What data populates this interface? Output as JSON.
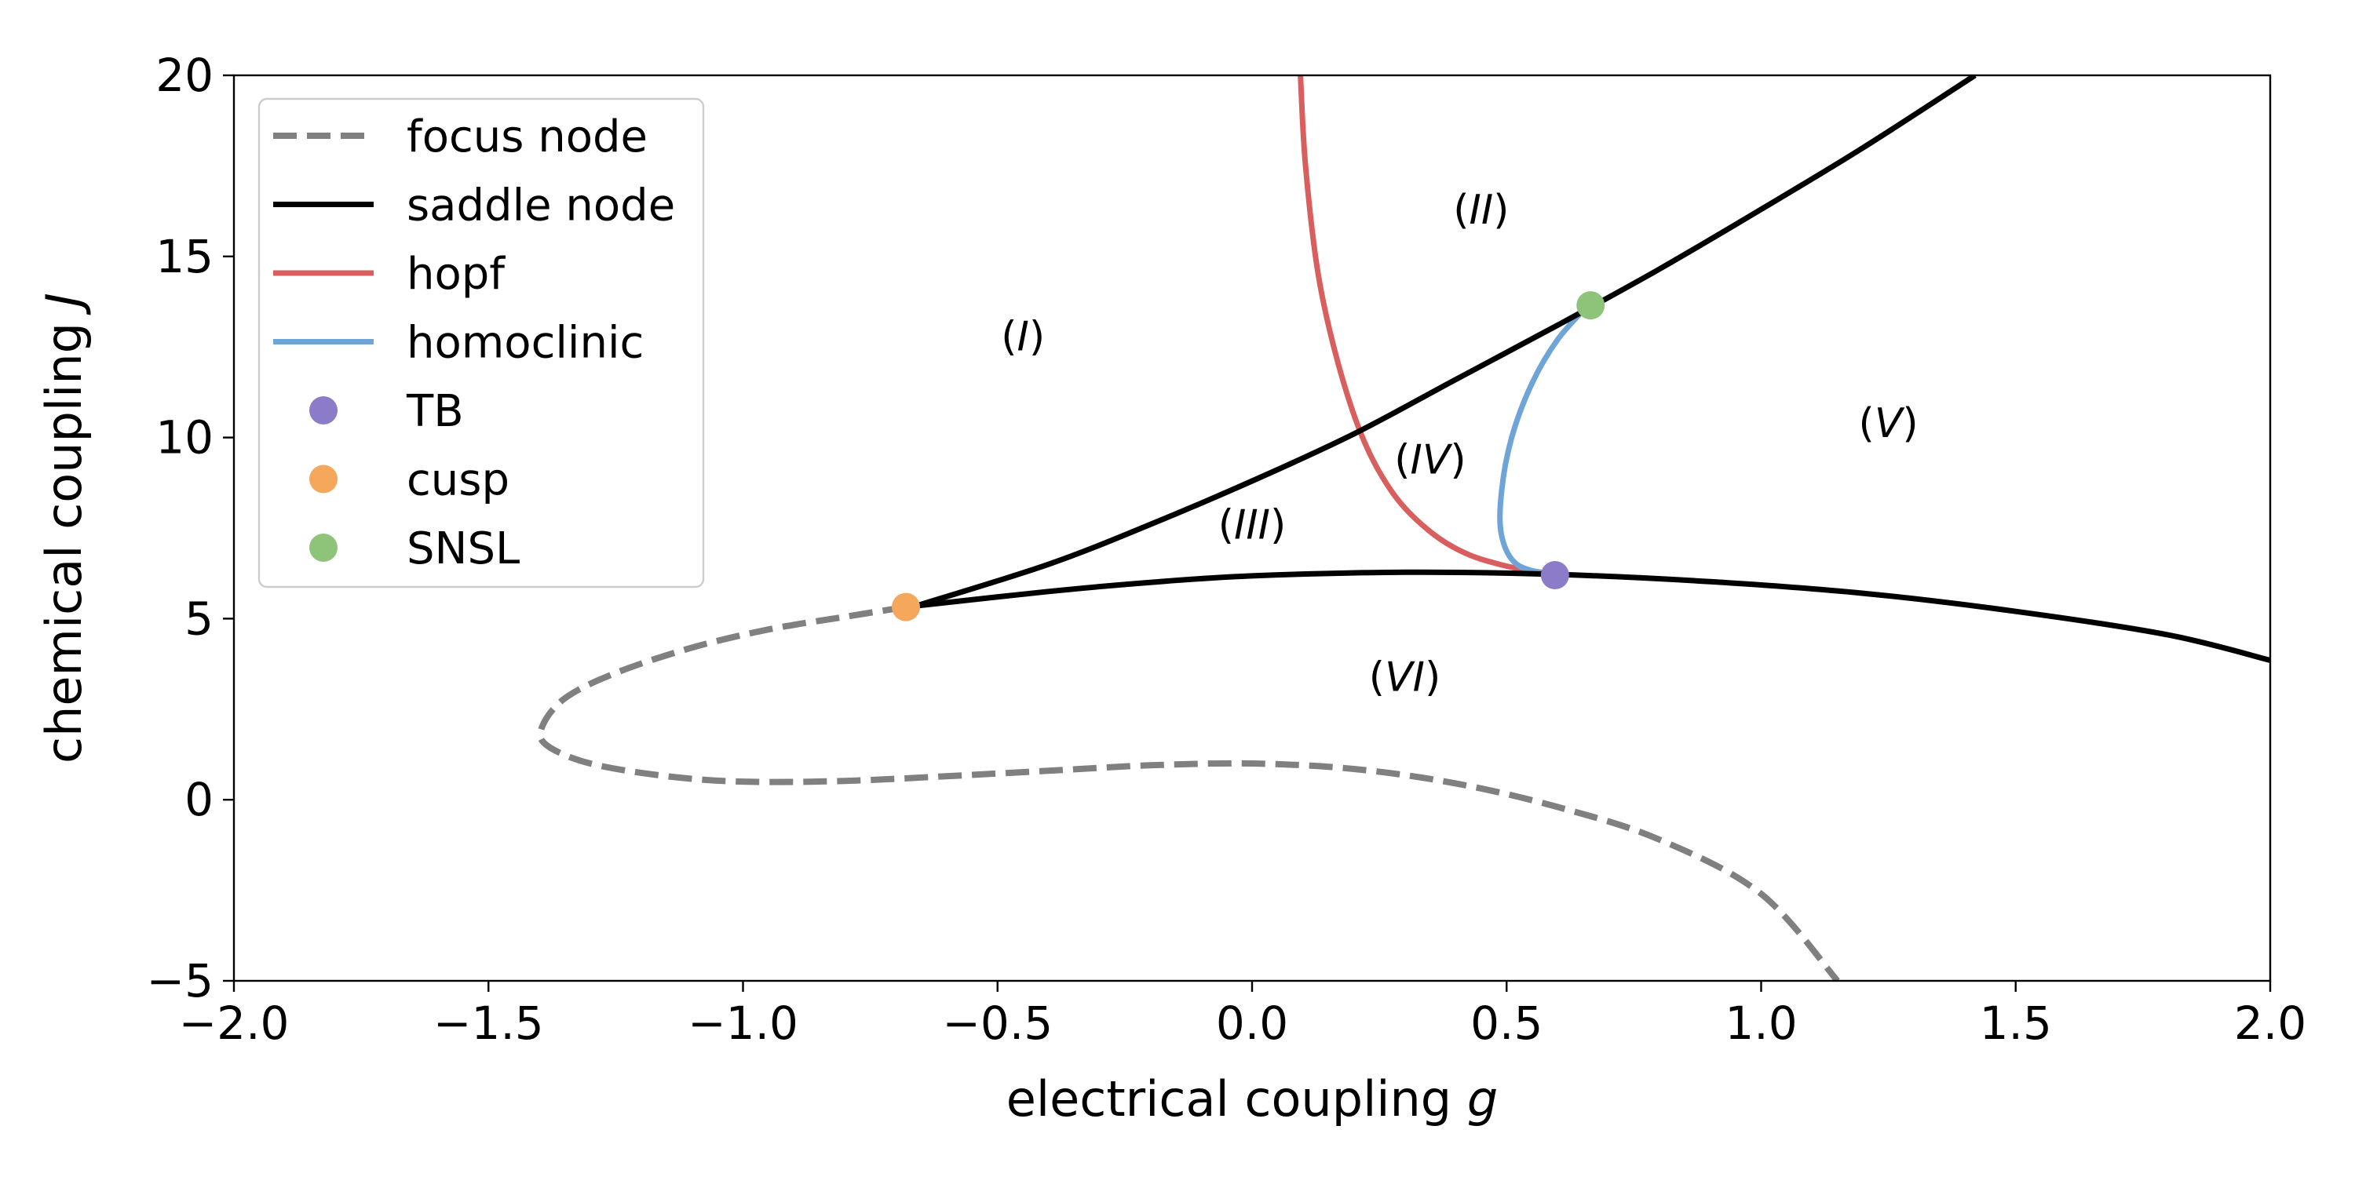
{
  "chart_data": {
    "type": "line",
    "xlabel_text": "electrical coupling ",
    "xlabel_var": "g",
    "ylabel_text": "chemical coupling ",
    "ylabel_var": "J",
    "xlim": [
      -2.0,
      2.0
    ],
    "ylim": [
      -5,
      20
    ],
    "x_ticks": [
      -2.0,
      -1.5,
      -1.0,
      -0.5,
      0.0,
      0.5,
      1.0,
      1.5,
      2.0
    ],
    "x_tick_labels": [
      "−2.0",
      "−1.5",
      "−1.0",
      "−0.5",
      "0.0",
      "0.5",
      "1.0",
      "1.5",
      "2.0"
    ],
    "y_ticks": [
      -5,
      0,
      5,
      10,
      15,
      20
    ],
    "y_tick_labels": [
      "−5",
      "0",
      "5",
      "10",
      "15",
      "20"
    ],
    "grid": false,
    "legend_position": "top-left",
    "series": [
      {
        "name": "focus node",
        "kind": "line",
        "style": "dashed",
        "color": "#808080",
        "points": [
          [
            -0.68,
            5.32
          ],
          [
            -0.8,
            5.05
          ],
          [
            -0.95,
            4.7
          ],
          [
            -1.1,
            4.2
          ],
          [
            -1.25,
            3.5
          ],
          [
            -1.35,
            2.8
          ],
          [
            -1.395,
            2.0
          ],
          [
            -1.385,
            1.5
          ],
          [
            -1.3,
            1.0
          ],
          [
            -1.15,
            0.65
          ],
          [
            -1.0,
            0.5
          ],
          [
            -0.8,
            0.52
          ],
          [
            -0.6,
            0.65
          ],
          [
            -0.4,
            0.8
          ],
          [
            -0.2,
            0.95
          ],
          [
            0.0,
            1.0
          ],
          [
            0.2,
            0.85
          ],
          [
            0.4,
            0.45
          ],
          [
            0.6,
            -0.2
          ],
          [
            0.8,
            -1.1
          ],
          [
            1.0,
            -2.6
          ],
          [
            1.15,
            -5.0
          ]
        ]
      },
      {
        "name": "saddle node",
        "kind": "line",
        "style": "solid",
        "color": "#000000",
        "segments": [
          [
            [
              -0.66,
              5.35
            ],
            [
              -0.4,
              6.5
            ],
            [
              -0.2,
              7.6
            ],
            [
              0.0,
              8.8
            ],
            [
              0.2,
              10.1
            ],
            [
              0.4,
              11.6
            ],
            [
              0.6,
              13.1
            ],
            [
              0.8,
              14.65
            ],
            [
              1.0,
              16.3
            ],
            [
              1.2,
              18.0
            ],
            [
              1.42,
              20.0
            ]
          ],
          [
            [
              -0.66,
              5.35
            ],
            [
              -0.4,
              5.75
            ],
            [
              -0.2,
              6.0
            ],
            [
              0.0,
              6.18
            ],
            [
              0.3,
              6.28
            ],
            [
              0.6,
              6.22
            ],
            [
              0.9,
              6.02
            ],
            [
              1.2,
              5.7
            ],
            [
              1.5,
              5.2
            ],
            [
              1.8,
              4.55
            ],
            [
              2.0,
              3.85
            ]
          ]
        ]
      },
      {
        "name": "hopf",
        "kind": "line",
        "style": "solid",
        "color": "#d95f5f",
        "points": [
          [
            0.095,
            20.0
          ],
          [
            0.105,
            17.5
          ],
          [
            0.13,
            14.5
          ],
          [
            0.17,
            12.0
          ],
          [
            0.22,
            9.9
          ],
          [
            0.28,
            8.4
          ],
          [
            0.35,
            7.4
          ],
          [
            0.42,
            6.8
          ],
          [
            0.5,
            6.45
          ],
          [
            0.58,
            6.25
          ]
        ]
      },
      {
        "name": "homoclinic",
        "kind": "line",
        "style": "solid",
        "color": "#6fa4d8",
        "points": [
          [
            0.59,
            6.2
          ],
          [
            0.52,
            6.5
          ],
          [
            0.49,
            7.3
          ],
          [
            0.49,
            8.5
          ],
          [
            0.51,
            10.0
          ],
          [
            0.55,
            11.5
          ],
          [
            0.6,
            12.7
          ],
          [
            0.66,
            13.65
          ]
        ]
      },
      {
        "name": "TB",
        "kind": "marker",
        "color": "#8c7bc8",
        "points": [
          [
            0.595,
            6.2
          ]
        ]
      },
      {
        "name": "cusp",
        "kind": "marker",
        "color": "#f5a85c",
        "points": [
          [
            -0.68,
            5.32
          ]
        ]
      },
      {
        "name": "SNSL",
        "kind": "marker",
        "color": "#8dc47a",
        "points": [
          [
            0.665,
            13.65
          ]
        ]
      }
    ],
    "annotations": [
      {
        "text": "(I)",
        "x": -0.45,
        "y": 12.8
      },
      {
        "text": "(II)",
        "x": 0.45,
        "y": 16.3
      },
      {
        "text": "(III)",
        "x": 0.0,
        "y": 7.6
      },
      {
        "text": "(IV)",
        "x": 0.35,
        "y": 9.4
      },
      {
        "text": "(V)",
        "x": 1.25,
        "y": 10.4
      },
      {
        "text": "(VI)",
        "x": 0.3,
        "y": 3.4
      }
    ]
  }
}
